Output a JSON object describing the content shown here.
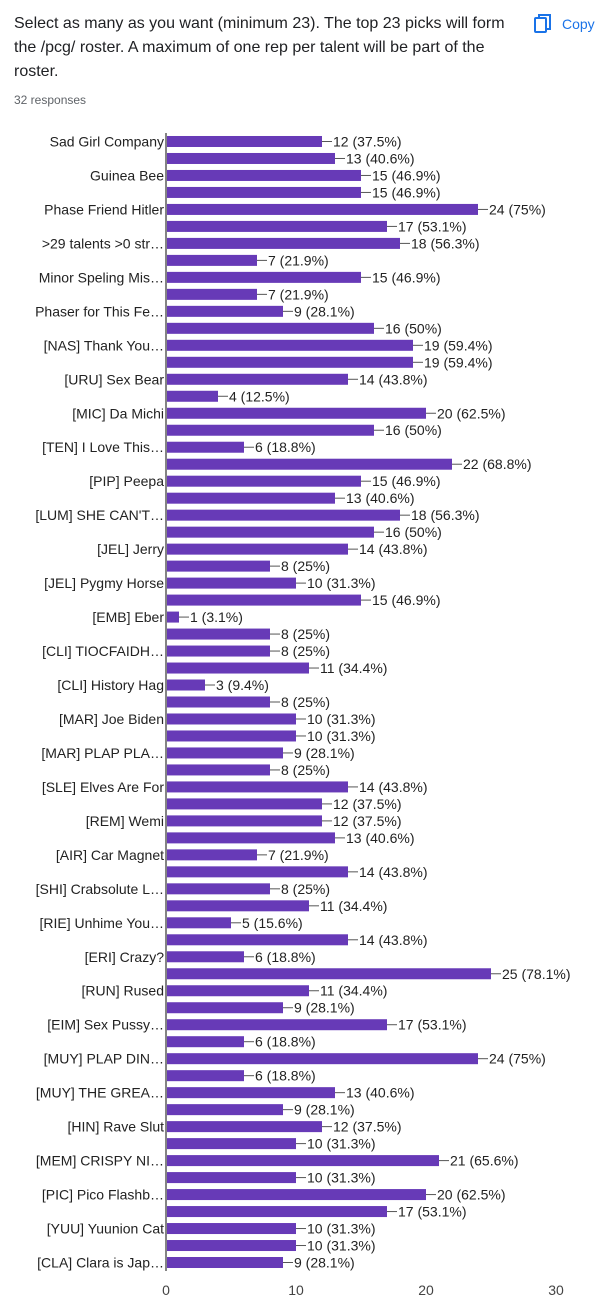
{
  "question": {
    "text": "Select as many as you want (minimum 23). The top 23 picks will form the /pcg/ roster.  A maximum of one rep per talent will be part of the roster.",
    "responses": "32 responses"
  },
  "actions": {
    "copy_label": "Copy",
    "copy_icon": "copy-icon"
  },
  "colors": {
    "bar": "#673ab7",
    "axis": "#333333",
    "leader": "#555555"
  },
  "chart_data": {
    "type": "bar",
    "orientation": "horizontal",
    "xlim": [
      0,
      30
    ],
    "xticks": [
      0,
      10,
      20,
      30
    ],
    "rows": [
      {
        "label": "Sad Girl Company",
        "value": 12,
        "text": "12 (37.5%)"
      },
      {
        "label": "",
        "value": 13,
        "text": "13 (40.6%)"
      },
      {
        "label": "Guinea Bee",
        "value": 15,
        "text": "15 (46.9%)"
      },
      {
        "label": "",
        "value": 15,
        "text": "15 (46.9%)"
      },
      {
        "label": "Phase Friend Hitler",
        "value": 24,
        "text": "24 (75%)"
      },
      {
        "label": "",
        "value": 17,
        "text": "17 (53.1%)"
      },
      {
        "label": ">29 talents >0 str…",
        "value": 18,
        "text": "18 (56.3%)"
      },
      {
        "label": "",
        "value": 7,
        "text": "7 (21.9%)"
      },
      {
        "label": "Minor Speling Mis…",
        "value": 15,
        "text": "15 (46.9%)"
      },
      {
        "label": "",
        "value": 7,
        "text": "7 (21.9%)"
      },
      {
        "label": "Phaser for This Fe…",
        "value": 9,
        "text": "9 (28.1%)"
      },
      {
        "label": "",
        "value": 16,
        "text": "16 (50%)"
      },
      {
        "label": "[NAS] Thank You…",
        "value": 19,
        "text": "19 (59.4%)"
      },
      {
        "label": "",
        "value": 19,
        "text": "19 (59.4%)"
      },
      {
        "label": "[URU] Sex Bear",
        "value": 14,
        "text": "14 (43.8%)"
      },
      {
        "label": "",
        "value": 4,
        "text": "4 (12.5%)"
      },
      {
        "label": "[MIC] Da Michi",
        "value": 20,
        "text": "20 (62.5%)"
      },
      {
        "label": "",
        "value": 16,
        "text": "16 (50%)"
      },
      {
        "label": "[TEN] I Love This…",
        "value": 6,
        "text": "6 (18.8%)"
      },
      {
        "label": "",
        "value": 22,
        "text": "22 (68.8%)"
      },
      {
        "label": "[PIP] Peepa",
        "value": 15,
        "text": "15 (46.9%)"
      },
      {
        "label": "",
        "value": 13,
        "text": "13 (40.6%)"
      },
      {
        "label": "[LUM] SHE CAN'T…",
        "value": 18,
        "text": "18 (56.3%)"
      },
      {
        "label": "",
        "value": 16,
        "text": "16 (50%)"
      },
      {
        "label": "[JEL] Jerry",
        "value": 14,
        "text": "14 (43.8%)"
      },
      {
        "label": "",
        "value": 8,
        "text": "8 (25%)"
      },
      {
        "label": "[JEL] Pygmy Horse",
        "value": 10,
        "text": "10 (31.3%)"
      },
      {
        "label": "",
        "value": 15,
        "text": "15 (46.9%)"
      },
      {
        "label": "[EMB] Eber",
        "value": 1,
        "text": "1 (3.1%)"
      },
      {
        "label": "",
        "value": 8,
        "text": "8 (25%)"
      },
      {
        "label": "[CLI] TIOCFAIDH…",
        "value": 8,
        "text": "8 (25%)"
      },
      {
        "label": "",
        "value": 11,
        "text": "11 (34.4%)"
      },
      {
        "label": "[CLI] History Hag",
        "value": 3,
        "text": "3 (9.4%)"
      },
      {
        "label": "",
        "value": 8,
        "text": "8 (25%)"
      },
      {
        "label": "[MAR] Joe Biden",
        "value": 10,
        "text": "10 (31.3%)"
      },
      {
        "label": "",
        "value": 10,
        "text": "10 (31.3%)"
      },
      {
        "label": "[MAR] PLAP PLA…",
        "value": 9,
        "text": "9 (28.1%)"
      },
      {
        "label": "",
        "value": 8,
        "text": "8 (25%)"
      },
      {
        "label": "[SLE] Elves Are For",
        "value": 14,
        "text": "14 (43.8%)"
      },
      {
        "label": "",
        "value": 12,
        "text": "12 (37.5%)"
      },
      {
        "label": "[REM] Wemi",
        "value": 12,
        "text": "12 (37.5%)"
      },
      {
        "label": "",
        "value": 13,
        "text": "13 (40.6%)"
      },
      {
        "label": "[AIR] Car Magnet",
        "value": 7,
        "text": "7 (21.9%)"
      },
      {
        "label": "",
        "value": 14,
        "text": "14 (43.8%)"
      },
      {
        "label": "[SHI] Crabsolute L…",
        "value": 8,
        "text": "8 (25%)"
      },
      {
        "label": "",
        "value": 11,
        "text": "11 (34.4%)"
      },
      {
        "label": "[RIE] Unhime You…",
        "value": 5,
        "text": "5 (15.6%)"
      },
      {
        "label": "",
        "value": 14,
        "text": "14 (43.8%)"
      },
      {
        "label": "[ERI] Crazy?",
        "value": 6,
        "text": "6 (18.8%)"
      },
      {
        "label": "",
        "value": 25,
        "text": "25 (78.1%)"
      },
      {
        "label": "[RUN] Rused",
        "value": 11,
        "text": "11 (34.4%)"
      },
      {
        "label": "",
        "value": 9,
        "text": "9 (28.1%)"
      },
      {
        "label": "[EIM] Sex Pussy…",
        "value": 17,
        "text": "17 (53.1%)"
      },
      {
        "label": "",
        "value": 6,
        "text": "6 (18.8%)"
      },
      {
        "label": "[MUY] PLAP DIN…",
        "value": 24,
        "text": "24 (75%)"
      },
      {
        "label": "",
        "value": 6,
        "text": "6 (18.8%)"
      },
      {
        "label": "[MUY] THE GREA…",
        "value": 13,
        "text": "13 (40.6%)"
      },
      {
        "label": "",
        "value": 9,
        "text": "9 (28.1%)"
      },
      {
        "label": "[HIN] Rave Slut",
        "value": 12,
        "text": "12 (37.5%)"
      },
      {
        "label": "",
        "value": 10,
        "text": "10 (31.3%)"
      },
      {
        "label": "[MEM] CRISPY NI…",
        "value": 21,
        "text": "21 (65.6%)"
      },
      {
        "label": "",
        "value": 10,
        "text": "10 (31.3%)"
      },
      {
        "label": "[PIC] Pico Flashb…",
        "value": 20,
        "text": "20 (62.5%)"
      },
      {
        "label": "",
        "value": 17,
        "text": "17 (53.1%)"
      },
      {
        "label": "[YUU] Yuunion Cat",
        "value": 10,
        "text": "10 (31.3%)"
      },
      {
        "label": "",
        "value": 10,
        "text": "10 (31.3%)"
      },
      {
        "label": "[CLA] Clara is Jap…",
        "value": 9,
        "text": "9 (28.1%)"
      }
    ]
  }
}
